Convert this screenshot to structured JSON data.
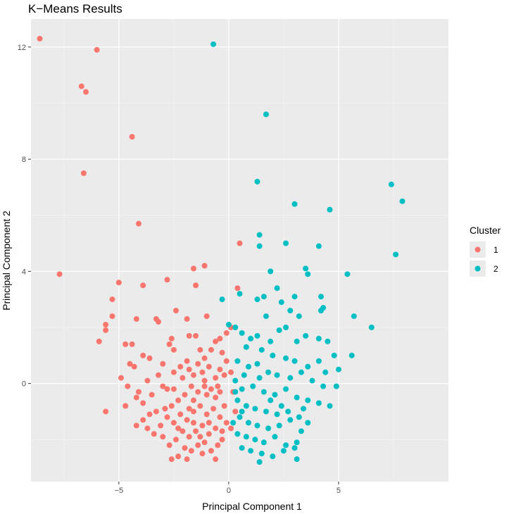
{
  "chart_data": {
    "type": "scatter",
    "title": "K−Means Results",
    "xlabel": "Principal Component 1",
    "ylabel": "Principal Component 2",
    "xlim": [
      -9,
      10
    ],
    "ylim": [
      -3.5,
      13
    ],
    "xticks": [
      -5,
      0,
      5
    ],
    "yticks": [
      0,
      4,
      8,
      12
    ],
    "xtick_labels": [
      "−5",
      "0",
      "5"
    ],
    "yticks_labels": [
      "0",
      "4",
      "8",
      "12"
    ],
    "grid": true,
    "legend": {
      "title": "Cluster",
      "placement": "right"
    },
    "series": [
      {
        "name": "1",
        "color": "#F8766D",
        "points": [
          [
            -8.6,
            12.3
          ],
          [
            -6.0,
            11.9
          ],
          [
            -6.7,
            10.6
          ],
          [
            -6.5,
            10.4
          ],
          [
            -4.4,
            8.8
          ],
          [
            -6.6,
            7.5
          ],
          [
            -4.1,
            5.7
          ],
          [
            -7.7,
            3.9
          ],
          [
            -5.0,
            3.6
          ],
          [
            -3.9,
            3.5
          ],
          [
            -2.8,
            3.7
          ],
          [
            -1.6,
            4.1
          ],
          [
            -1.1,
            4.2
          ],
          [
            -1.5,
            3.5
          ],
          [
            -5.3,
            3.0
          ],
          [
            -5.3,
            2.4
          ],
          [
            -5.6,
            2.1
          ],
          [
            -5.6,
            1.9
          ],
          [
            -5.9,
            1.5
          ],
          [
            -5.6,
            -1.0
          ],
          [
            -4.2,
            2.3
          ],
          [
            -3.3,
            2.3
          ],
          [
            -3.2,
            2.2
          ],
          [
            -2.4,
            2.6
          ],
          [
            -1.9,
            2.3
          ],
          [
            -1.0,
            2.4
          ],
          [
            0.5,
            5.0
          ],
          [
            0.4,
            3.4
          ],
          [
            -0.1,
            1.8
          ],
          [
            -0.4,
            1.6
          ],
          [
            -0.6,
            1.5
          ],
          [
            0.1,
            2.0
          ],
          [
            -4.7,
            1.4
          ],
          [
            -4.4,
            1.4
          ],
          [
            -3.9,
            1.0
          ],
          [
            -3.6,
            0.9
          ],
          [
            -3.0,
            0.7
          ],
          [
            -2.6,
            1.6
          ],
          [
            -2.5,
            1.2
          ],
          [
            -2.7,
            1.4
          ],
          [
            -1.8,
            1.7
          ],
          [
            -1.5,
            1.7
          ],
          [
            -1.3,
            1.2
          ],
          [
            -1.1,
            0.9
          ],
          [
            -0.8,
            1.2
          ],
          [
            -4.5,
            0.7
          ],
          [
            -4.3,
            0.6
          ],
          [
            -4.9,
            0.2
          ],
          [
            -4.6,
            -0.1
          ],
          [
            -4.1,
            -0.3
          ],
          [
            -4.2,
            -0.5
          ],
          [
            -3.7,
            0.1
          ],
          [
            -3.5,
            -0.4
          ],
          [
            -3.0,
            -0.1
          ],
          [
            -2.8,
            -0.2
          ],
          [
            -2.5,
            0.4
          ],
          [
            -2.2,
            0.6
          ],
          [
            -1.9,
            0.8
          ],
          [
            -1.8,
            0.5
          ],
          [
            -1.6,
            0.3
          ],
          [
            -1.4,
            0.7
          ],
          [
            -1.2,
            0.4
          ],
          [
            -0.9,
            0.6
          ],
          [
            -0.6,
            0.2
          ],
          [
            -0.4,
            0.5
          ],
          [
            -0.2,
            0.3
          ],
          [
            -0.5,
            -0.1
          ],
          [
            -0.8,
            -0.2
          ],
          [
            -1.1,
            -0.1
          ],
          [
            -1.4,
            -0.3
          ],
          [
            -1.7,
            -0.1
          ],
          [
            -2.0,
            -0.4
          ],
          [
            -2.3,
            -0.6
          ],
          [
            -2.6,
            -0.8
          ],
          [
            -2.9,
            -0.9
          ],
          [
            -3.3,
            -1.0
          ],
          [
            -3.6,
            -1.1
          ],
          [
            -3.9,
            -1.3
          ],
          [
            -4.2,
            -1.5
          ],
          [
            -3.1,
            -1.5
          ],
          [
            -2.8,
            -1.2
          ],
          [
            -2.5,
            -1.4
          ],
          [
            -2.2,
            -1.1
          ],
          [
            -1.9,
            -1.3
          ],
          [
            -1.6,
            -1.0
          ],
          [
            -1.3,
            -0.8
          ],
          [
            -1.0,
            -1.1
          ],
          [
            -0.7,
            -0.9
          ],
          [
            -0.4,
            -1.2
          ],
          [
            -0.2,
            -0.8
          ],
          [
            -0.1,
            -1.4
          ],
          [
            -0.3,
            -1.7
          ],
          [
            -0.6,
            -1.6
          ],
          [
            -0.9,
            -1.8
          ],
          [
            -1.2,
            -1.5
          ],
          [
            -1.5,
            -1.7
          ],
          [
            -1.8,
            -1.9
          ],
          [
            -2.1,
            -1.7
          ],
          [
            -2.4,
            -2.0
          ],
          [
            -2.7,
            -2.2
          ],
          [
            -3.0,
            -1.9
          ],
          [
            -3.4,
            -1.8
          ],
          [
            -3.7,
            -1.6
          ],
          [
            -2.0,
            -2.3
          ],
          [
            -1.7,
            -2.4
          ],
          [
            -1.4,
            -2.2
          ],
          [
            -1.1,
            -2.1
          ],
          [
            -0.8,
            -2.4
          ],
          [
            -0.5,
            -2.2
          ],
          [
            -0.3,
            -2.0
          ],
          [
            -2.3,
            -2.6
          ],
          [
            -2.6,
            -2.7
          ],
          [
            -1.9,
            -2.7
          ],
          [
            -1.2,
            -2.5
          ],
          [
            -0.6,
            -2.7
          ],
          [
            -1.6,
            -0.6
          ],
          [
            -1.0,
            -0.4
          ],
          [
            -0.6,
            -0.5
          ],
          [
            -2.1,
            0.2
          ],
          [
            -3.2,
            0.3
          ],
          [
            -3.9,
            -0.7
          ],
          [
            -4.7,
            -0.8
          ],
          [
            -0.3,
            1.1
          ],
          [
            -0.1,
            0.8
          ],
          [
            0.1,
            0.4
          ],
          [
            0.2,
            -0.3
          ],
          [
            0.3,
            -1.0
          ],
          [
            0.1,
            -1.6
          ],
          [
            -1.3,
            -1.9
          ],
          [
            -0.9,
            -1.4
          ],
          [
            -1.6,
            -1.4
          ],
          [
            -2.3,
            -1.6
          ],
          [
            -1.1,
            0.1
          ],
          [
            -0.4,
            -0.3
          ],
          [
            -1.8,
            -0.9
          ],
          [
            -2.5,
            -0.2
          ]
        ]
      },
      {
        "name": "2",
        "color": "#00BFC4",
        "points": [
          [
            -0.7,
            12.1
          ],
          [
            1.7,
            9.6
          ],
          [
            1.3,
            7.2
          ],
          [
            7.4,
            7.1
          ],
          [
            7.9,
            6.5
          ],
          [
            3.0,
            6.4
          ],
          [
            4.6,
            6.2
          ],
          [
            1.4,
            5.3
          ],
          [
            1.4,
            4.9
          ],
          [
            2.6,
            5.0
          ],
          [
            4.1,
            4.9
          ],
          [
            7.6,
            4.6
          ],
          [
            1.9,
            4.0
          ],
          [
            3.5,
            4.1
          ],
          [
            3.6,
            3.9
          ],
          [
            5.4,
            3.9
          ],
          [
            -0.3,
            3.0
          ],
          [
            1.3,
            3.0
          ],
          [
            1.6,
            3.1
          ],
          [
            2.2,
            3.4
          ],
          [
            3.0,
            3.1
          ],
          [
            4.2,
            3.1
          ],
          [
            4.3,
            2.7
          ],
          [
            4.2,
            2.6
          ],
          [
            2.4,
            2.9
          ],
          [
            0.5,
            3.2
          ],
          [
            1.7,
            2.4
          ],
          [
            2.8,
            2.6
          ],
          [
            3.2,
            2.4
          ],
          [
            5.7,
            2.4
          ],
          [
            6.5,
            2.0
          ],
          [
            0.0,
            2.1
          ],
          [
            0.3,
            2.0
          ],
          [
            0.6,
            1.8
          ],
          [
            1.0,
            1.6
          ],
          [
            1.3,
            1.7
          ],
          [
            1.9,
            1.5
          ],
          [
            2.3,
            1.9
          ],
          [
            2.6,
            2.0
          ],
          [
            3.1,
            1.5
          ],
          [
            3.5,
            1.7
          ],
          [
            4.1,
            1.6
          ],
          [
            4.5,
            1.5
          ],
          [
            4.8,
            1.0
          ],
          [
            5.6,
            1.0
          ],
          [
            0.8,
            1.3
          ],
          [
            1.5,
            1.2
          ],
          [
            2.0,
            1.0
          ],
          [
            2.6,
            0.9
          ],
          [
            3.0,
            0.8
          ],
          [
            3.6,
            0.6
          ],
          [
            4.1,
            0.8
          ],
          [
            4.4,
            0.4
          ],
          [
            5.0,
            0.5
          ],
          [
            0.4,
            0.8
          ],
          [
            0.9,
            0.6
          ],
          [
            1.3,
            0.7
          ],
          [
            1.8,
            0.4
          ],
          [
            2.2,
            0.3
          ],
          [
            2.8,
            0.2
          ],
          [
            3.3,
            0.4
          ],
          [
            3.8,
            0.1
          ],
          [
            4.3,
            -0.1
          ],
          [
            4.9,
            -0.1
          ],
          [
            0.3,
            0.1
          ],
          [
            0.6,
            -0.2
          ],
          [
            1.1,
            -0.1
          ],
          [
            1.6,
            -0.3
          ],
          [
            2.1,
            -0.4
          ],
          [
            2.6,
            -0.2
          ],
          [
            3.1,
            -0.5
          ],
          [
            3.6,
            -0.6
          ],
          [
            4.1,
            -0.7
          ],
          [
            4.6,
            -0.8
          ],
          [
            0.4,
            -0.6
          ],
          [
            0.8,
            -0.8
          ],
          [
            1.2,
            -0.9
          ],
          [
            1.7,
            -1.0
          ],
          [
            2.2,
            -1.1
          ],
          [
            2.7,
            -1.0
          ],
          [
            3.2,
            -1.2
          ],
          [
            3.6,
            -1.4
          ],
          [
            0.5,
            -1.2
          ],
          [
            0.9,
            -1.4
          ],
          [
            1.3,
            -1.5
          ],
          [
            1.8,
            -1.6
          ],
          [
            2.3,
            -1.5
          ],
          [
            2.8,
            -1.3
          ],
          [
            3.3,
            -1.7
          ],
          [
            0.4,
            -1.8
          ],
          [
            0.8,
            -1.9
          ],
          [
            1.2,
            -2.0
          ],
          [
            1.6,
            -2.1
          ],
          [
            2.1,
            -1.9
          ],
          [
            2.6,
            -2.2
          ],
          [
            3.1,
            -2.1
          ],
          [
            0.6,
            -2.3
          ],
          [
            1.0,
            -2.4
          ],
          [
            1.5,
            -2.5
          ],
          [
            2.0,
            -2.6
          ],
          [
            2.5,
            -2.4
          ],
          [
            3.0,
            -2.3
          ],
          [
            3.1,
            -2.7
          ],
          [
            1.4,
            -2.8
          ],
          [
            0.2,
            -1.4
          ],
          [
            0.3,
            -0.3
          ],
          [
            0.7,
            0.3
          ],
          [
            1.9,
            -0.6
          ],
          [
            2.4,
            -0.8
          ],
          [
            1.4,
            0.2
          ],
          [
            3.4,
            -0.9
          ],
          [
            0.6,
            -1.0
          ]
        ]
      }
    ]
  }
}
